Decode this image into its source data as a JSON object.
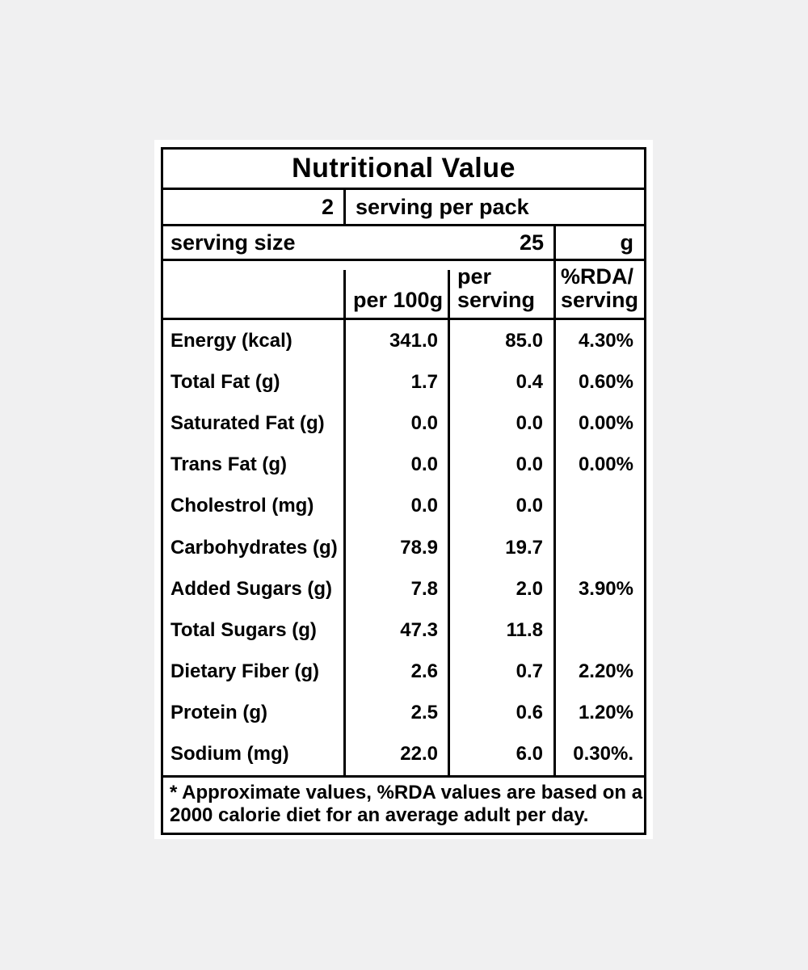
{
  "page": {
    "background_color": "#f0f0f1",
    "panel_color": "#ffffff",
    "border_color": "#000000"
  },
  "label": {
    "title": "Nutritional Value",
    "servings_per_pack": {
      "count": "2",
      "text": "serving per pack"
    },
    "serving_size": {
      "label": "serving size",
      "value": "25",
      "unit": "g"
    },
    "columns": {
      "per_100g": "per 100g",
      "per_serving_line1": "per",
      "per_serving_line2": "serving",
      "rda_line1": "%RDA/",
      "rda_line2": "serving"
    },
    "rows": [
      {
        "label": "Energy (kcal)",
        "per_100g": "341.0",
        "per_serving": "85.0",
        "rda": "4.30%"
      },
      {
        "label": "Total Fat (g)",
        "per_100g": "1.7",
        "per_serving": "0.4",
        "rda": "0.60%"
      },
      {
        "label": "Saturated Fat (g)",
        "per_100g": "0.0",
        "per_serving": "0.0",
        "rda": "0.00%"
      },
      {
        "label": "Trans Fat (g)",
        "per_100g": "0.0",
        "per_serving": "0.0",
        "rda": "0.00%"
      },
      {
        "label": "Cholestrol (mg)",
        "per_100g": "0.0",
        "per_serving": "0.0",
        "rda": ""
      },
      {
        "label": "Carbohydrates (g)",
        "per_100g": "78.9",
        "per_serving": "19.7",
        "rda": ""
      },
      {
        "label": "Added Sugars (g)",
        "per_100g": "7.8",
        "per_serving": "2.0",
        "rda": "3.90%"
      },
      {
        "label": "Total Sugars (g)",
        "per_100g": "47.3",
        "per_serving": "11.8",
        "rda": ""
      },
      {
        "label": "Dietary Fiber (g)",
        "per_100g": "2.6",
        "per_serving": "0.7",
        "rda": "2.20%"
      },
      {
        "label": "Protein (g)",
        "per_100g": "2.5",
        "per_serving": "0.6",
        "rda": "1.20%"
      },
      {
        "label": "Sodium (mg)",
        "per_100g": "22.0",
        "per_serving": "6.0",
        "rda": "0.30%."
      }
    ],
    "footnote_line1": "* Approximate values, %RDA values are based on a",
    "footnote_line2": "2000 calorie diet for an average adult per day."
  }
}
